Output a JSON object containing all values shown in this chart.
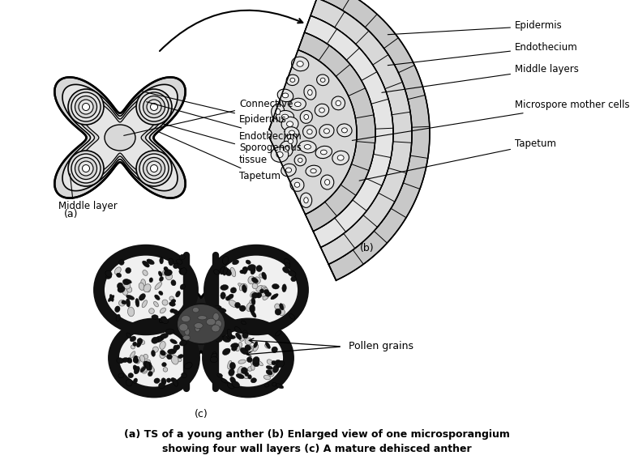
{
  "caption_line1": "(a) TS of a young anther (b) Enlarged view of one microsporangium",
  "caption_line2": "showing four wall layers (c) A mature dehisced anther",
  "label_a": "(a)",
  "label_b": "(b)",
  "label_c": "(c)",
  "label_connective": "Connective",
  "label_epidermis_a": "Epidermis",
  "label_endothecium_a": "Endothecium",
  "label_sporogenous": "Sporogenous\ntissue",
  "label_tapetum_a": "Tapetum",
  "label_middle_layer": "Middle layer",
  "label_epidermis_b": "Epidermis",
  "label_endothecium_b": "Endothecium",
  "label_middle_layers_b": "Middle layers",
  "label_microspore": "Microspore mother cells",
  "label_tapetum_b": "Tapetum",
  "label_pollen": "Pollen grains",
  "bg_color": "#ffffff"
}
